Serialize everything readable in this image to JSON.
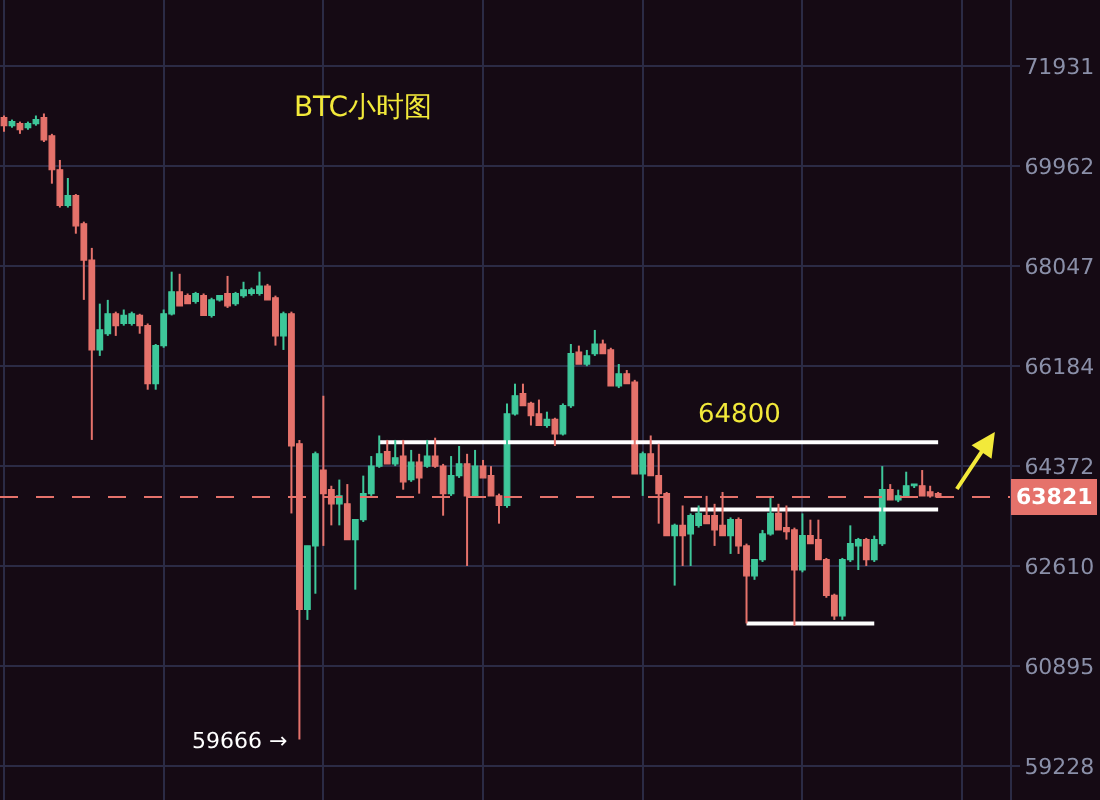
{
  "chart_data": {
    "type": "candlestick",
    "title": "BTC小时图",
    "categories": [
      null,
      null,
      null,
      null,
      null,
      null,
      null,
      null,
      null,
      null,
      null,
      null,
      null,
      null,
      null,
      null,
      null,
      null,
      null,
      null,
      null,
      null,
      null,
      null,
      null,
      null,
      null,
      null,
      null,
      null,
      null,
      null,
      null,
      null,
      null,
      null,
      null,
      null,
      null,
      null,
      null,
      null,
      null,
      null,
      null,
      null,
      null,
      null,
      null,
      null,
      null,
      null,
      null,
      null,
      null,
      null,
      null,
      null,
      null,
      null,
      null,
      null,
      null,
      null,
      null,
      null,
      null,
      null,
      null,
      null,
      null,
      null,
      null,
      null,
      null,
      null,
      null,
      null,
      null,
      null,
      null,
      null,
      null,
      null,
      null,
      null,
      null,
      null,
      null,
      null,
      null,
      null,
      null,
      null,
      null,
      null,
      null,
      null,
      null,
      null,
      null,
      null,
      null,
      null,
      null,
      null,
      null,
      null,
      null,
      null,
      null,
      null,
      null,
      null,
      null,
      null,
      null,
      null
    ],
    "ohlc": [
      [
        70910,
        70950,
        70630,
        70750
      ],
      [
        70750,
        70870,
        70710,
        70830
      ],
      [
        70790,
        70830,
        70590,
        70670
      ],
      [
        70710,
        70830,
        70670,
        70790
      ],
      [
        70790,
        70950,
        70750,
        70870
      ],
      [
        70910,
        70990,
        70430,
        70470
      ],
      [
        70550,
        70590,
        69620,
        69890
      ],
      [
        69890,
        70080,
        69160,
        69200
      ],
      [
        69200,
        69730,
        69160,
        69390
      ],
      [
        69390,
        69420,
        68660,
        68810
      ],
      [
        68850,
        68890,
        67410,
        68160
      ],
      [
        68160,
        68390,
        64840,
        66480
      ],
      [
        66480,
        67340,
        66370,
        66850
      ],
      [
        66780,
        67410,
        66740,
        67150
      ],
      [
        67150,
        67190,
        66740,
        66930
      ],
      [
        66970,
        67230,
        66930,
        67120
      ],
      [
        66970,
        67190,
        66930,
        67150
      ],
      [
        67120,
        67150,
        66780,
        66930
      ],
      [
        66930,
        66970,
        65750,
        65860
      ],
      [
        65860,
        66590,
        65750,
        66560
      ],
      [
        66560,
        67230,
        66520,
        67150
      ],
      [
        67150,
        67940,
        67120,
        67560
      ],
      [
        67560,
        67900,
        67300,
        67300
      ],
      [
        67490,
        67530,
        67340,
        67340
      ],
      [
        67380,
        67560,
        67340,
        67530
      ],
      [
        67490,
        67530,
        67120,
        67120
      ],
      [
        67120,
        67450,
        67080,
        67410
      ],
      [
        67410,
        67490,
        67380,
        67490
      ],
      [
        67530,
        67860,
        67260,
        67300
      ],
      [
        67340,
        67560,
        67300,
        67530
      ],
      [
        67490,
        67750,
        67450,
        67600
      ],
      [
        67530,
        67640,
        67490,
        67600
      ],
      [
        67530,
        67940,
        67490,
        67670
      ],
      [
        67670,
        67710,
        67410,
        67410
      ],
      [
        67450,
        67490,
        66560,
        66740
      ],
      [
        66740,
        67190,
        66480,
        67150
      ],
      [
        67150,
        67190,
        63530,
        64730
      ],
      [
        64770,
        64840,
        59666,
        61860
      ],
      [
        61860,
        62960,
        61680,
        62960
      ],
      [
        62960,
        64630,
        62130,
        64590
      ],
      [
        64300,
        65640,
        62960,
        63880
      ],
      [
        63950,
        64020,
        63320,
        63700
      ],
      [
        63700,
        64130,
        63320,
        63840
      ],
      [
        63700,
        64050,
        63070,
        63070
      ],
      [
        63070,
        63420,
        62200,
        63420
      ],
      [
        63420,
        64200,
        63380,
        63880
      ],
      [
        63880,
        64550,
        63840,
        64370
      ],
      [
        64370,
        64920,
        64340,
        64590
      ],
      [
        64630,
        64840,
        64410,
        64410
      ],
      [
        64410,
        64840,
        64370,
        64520
      ],
      [
        64550,
        64840,
        63950,
        64090
      ],
      [
        64130,
        64660,
        64090,
        64440
      ],
      [
        64440,
        64590,
        63880,
        64160
      ],
      [
        64370,
        64840,
        64340,
        64550
      ],
      [
        64550,
        64880,
        64340,
        64370
      ],
      [
        64370,
        64410,
        63490,
        63880
      ],
      [
        63880,
        64550,
        63840,
        64200
      ],
      [
        64200,
        64730,
        64160,
        64410
      ],
      [
        64410,
        64590,
        62610,
        63840
      ],
      [
        63840,
        64660,
        63810,
        64370
      ],
      [
        64370,
        64480,
        64160,
        64160
      ],
      [
        64200,
        64370,
        63840,
        63840
      ],
      [
        63840,
        63880,
        63350,
        63670
      ],
      [
        63670,
        65500,
        63630,
        65310
      ],
      [
        65310,
        65860,
        65280,
        65640
      ],
      [
        65680,
        65860,
        65460,
        65460
      ],
      [
        65500,
        65530,
        65100,
        65280
      ],
      [
        65310,
        65570,
        65100,
        65100
      ],
      [
        65100,
        65350,
        65060,
        65210
      ],
      [
        65210,
        65240,
        64730,
        64950
      ],
      [
        64950,
        65500,
        64920,
        65460
      ],
      [
        65460,
        66590,
        65420,
        66410
      ],
      [
        66440,
        66560,
        66220,
        66220
      ],
      [
        66220,
        66480,
        66180,
        66370
      ],
      [
        66410,
        66850,
        66370,
        66590
      ],
      [
        66590,
        66670,
        66410,
        66410
      ],
      [
        66480,
        66520,
        65820,
        65820
      ],
      [
        65820,
        66220,
        65780,
        66040
      ],
      [
        66040,
        66110,
        65860,
        65860
      ],
      [
        65890,
        65930,
        64230,
        64230
      ],
      [
        64230,
        64630,
        63840,
        64590
      ],
      [
        64590,
        64920,
        64200,
        64200
      ],
      [
        64200,
        64770,
        63350,
        63880
      ],
      [
        63880,
        63910,
        63140,
        63140
      ],
      [
        63140,
        63350,
        62270,
        63320
      ],
      [
        63320,
        63670,
        62610,
        63140
      ],
      [
        63170,
        63530,
        62610,
        63490
      ],
      [
        63320,
        63670,
        63280,
        63530
      ],
      [
        63490,
        63840,
        63350,
        63350
      ],
      [
        63490,
        63700,
        62960,
        63240
      ],
      [
        63320,
        63910,
        63140,
        63140
      ],
      [
        63140,
        63460,
        62820,
        63420
      ],
      [
        63420,
        63460,
        62820,
        62960
      ],
      [
        62960,
        63000,
        61620,
        62440
      ],
      [
        62440,
        62720,
        62370,
        62720
      ],
      [
        62720,
        63240,
        62680,
        63170
      ],
      [
        63170,
        63810,
        63140,
        63530
      ],
      [
        63530,
        63700,
        63240,
        63240
      ],
      [
        63280,
        63670,
        63070,
        63210
      ],
      [
        63240,
        63280,
        61580,
        62540
      ],
      [
        62540,
        63530,
        62500,
        63140
      ],
      [
        63140,
        63420,
        63000,
        63000
      ],
      [
        63070,
        63420,
        62720,
        62720
      ],
      [
        62720,
        62750,
        62060,
        62100
      ],
      [
        62100,
        62130,
        61680,
        61750
      ],
      [
        61750,
        62750,
        61680,
        62720
      ],
      [
        62720,
        63320,
        62680,
        63000
      ],
      [
        62960,
        63100,
        62540,
        63070
      ],
      [
        63070,
        63100,
        62610,
        62720
      ],
      [
        62720,
        63140,
        62680,
        63070
      ],
      [
        63000,
        64370,
        62960,
        63950
      ],
      [
        63950,
        64050,
        63770,
        63770
      ],
      [
        63770,
        63950,
        63730,
        63840
      ],
      [
        63840,
        64270,
        63810,
        64020
      ],
      [
        64020,
        64050,
        63980,
        64050
      ],
      [
        64020,
        64300,
        63840,
        63840
      ],
      [
        63910,
        64020,
        63810,
        63840
      ],
      [
        63880,
        63910,
        63810,
        63821
      ]
    ],
    "colors": [
      "#e5726b",
      "#3ec79a",
      "#e5726b",
      "#3ec79a",
      "#3ec79a",
      "#e5726b",
      "#e5726b",
      "#e5726b",
      "#3ec79a",
      "#e5726b",
      "#e5726b",
      "#e5726b",
      "#3ec79a",
      "#3ec79a",
      "#e5726b",
      "#3ec79a",
      "#3ec79a",
      "#e5726b",
      "#e5726b",
      "#3ec79a",
      "#3ec79a",
      "#3ec79a",
      "#e5726b",
      "#e5726b",
      "#3ec79a",
      "#e5726b",
      "#3ec79a",
      "#3ec79a",
      "#e5726b",
      "#3ec79a",
      "#3ec79a",
      "#3ec79a",
      "#3ec79a",
      "#e5726b",
      "#e5726b",
      "#3ec79a",
      "#e5726b",
      "#e5726b",
      "#3ec79a",
      "#3ec79a",
      "#e5726b",
      "#e5726b",
      "#3ec79a",
      "#e5726b",
      "#3ec79a",
      "#3ec79a",
      "#3ec79a",
      "#3ec79a",
      "#e5726b",
      "#3ec79a",
      "#e5726b",
      "#3ec79a",
      "#e5726b",
      "#3ec79a",
      "#e5726b",
      "#e5726b",
      "#3ec79a",
      "#3ec79a",
      "#e5726b",
      "#3ec79a",
      "#e5726b",
      "#e5726b",
      "#e5726b",
      "#3ec79a",
      "#3ec79a",
      "#e5726b",
      "#e5726b",
      "#e5726b",
      "#3ec79a",
      "#e5726b",
      "#3ec79a",
      "#3ec79a",
      "#e5726b",
      "#3ec79a",
      "#3ec79a",
      "#e5726b",
      "#e5726b",
      "#3ec79a",
      "#e5726b",
      "#e5726b",
      "#3ec79a",
      "#e5726b",
      "#e5726b",
      "#e5726b",
      "#3ec79a",
      "#e5726b",
      "#3ec79a",
      "#3ec79a",
      "#e5726b",
      "#e5726b",
      "#e5726b",
      "#3ec79a",
      "#e5726b",
      "#e5726b",
      "#3ec79a",
      "#3ec79a",
      "#3ec79a",
      "#e5726b",
      "#e5726b",
      "#e5726b",
      "#3ec79a",
      "#e5726b",
      "#e5726b",
      "#e5726b",
      "#e5726b",
      "#3ec79a",
      "#3ec79a",
      "#3ec79a",
      "#e5726b",
      "#3ec79a",
      "#3ec79a",
      "#e5726b",
      "#3ec79a",
      "#3ec79a",
      "#3ec79a",
      "#e5726b",
      "#e5726b",
      "#e5726b"
    ],
    "series": [
      {
        "type": "line",
        "color": "#ffffff",
        "values": [
          null,
          null,
          null,
          null,
          null,
          null,
          null,
          null,
          null,
          null,
          null,
          null,
          null,
          null,
          null,
          null,
          null,
          null,
          null,
          null,
          null,
          null,
          null,
          null,
          null,
          null,
          null,
          null,
          null,
          null,
          null,
          null,
          null,
          null,
          null,
          null,
          null,
          null,
          null,
          null,
          null,
          null,
          null,
          null,
          null,
          null,
          null,
          64800,
          64800,
          64800,
          64800,
          64800,
          64800,
          64800,
          64800,
          64800,
          64800,
          64800,
          64800,
          64800,
          64800,
          64800,
          64800,
          64800,
          64800,
          64800,
          64800,
          64800,
          64800,
          64800,
          64800,
          64800,
          64800,
          64800,
          64800,
          64800,
          64800,
          64800,
          64800,
          64800,
          64800,
          64800,
          64800,
          64800,
          64800,
          64800,
          64800,
          64800,
          64800,
          64800,
          64800,
          64800,
          64800,
          64800,
          64800,
          64800,
          64800,
          64800,
          64800,
          64800,
          64800,
          64800,
          64800,
          64800,
          64800,
          64800,
          64800,
          64800,
          64800,
          64800,
          64800,
          64800,
          64800,
          64800,
          64800,
          64800,
          64800,
          64800
        ]
      },
      {
        "type": "line",
        "color": "#ffffff",
        "values": [
          null,
          null,
          null,
          null,
          null,
          null,
          null,
          null,
          null,
          null,
          null,
          null,
          null,
          null,
          null,
          null,
          null,
          null,
          null,
          null,
          null,
          null,
          null,
          null,
          null,
          null,
          null,
          null,
          null,
          null,
          null,
          null,
          null,
          null,
          null,
          null,
          null,
          null,
          null,
          null,
          null,
          null,
          null,
          null,
          null,
          null,
          null,
          null,
          null,
          null,
          null,
          null,
          null,
          null,
          null,
          null,
          null,
          null,
          null,
          null,
          null,
          null,
          null,
          null,
          null,
          null,
          null,
          null,
          null,
          null,
          null,
          null,
          null,
          null,
          null,
          null,
          null,
          null,
          null,
          null,
          null,
          null,
          null,
          null,
          null,
          null,
          63600,
          63600,
          63600,
          63600,
          63600,
          63600,
          63600,
          63600,
          63600,
          63600,
          63600,
          63600,
          63600,
          63600,
          63600,
          63600,
          63600,
          63600,
          63600,
          63600,
          63600,
          63600,
          63600,
          63600,
          63600,
          63600,
          63600,
          63600,
          63600,
          63600,
          63600,
          63600
        ]
      },
      {
        "type": "line",
        "color": "#ffffff",
        "values": [
          null,
          null,
          null,
          null,
          null,
          null,
          null,
          null,
          null,
          null,
          null,
          null,
          null,
          null,
          null,
          null,
          null,
          null,
          null,
          null,
          null,
          null,
          null,
          null,
          null,
          null,
          null,
          null,
          null,
          null,
          null,
          null,
          null,
          null,
          null,
          null,
          null,
          null,
          null,
          null,
          null,
          null,
          null,
          null,
          null,
          null,
          null,
          null,
          null,
          null,
          null,
          null,
          null,
          null,
          null,
          null,
          null,
          null,
          null,
          null,
          null,
          null,
          null,
          null,
          null,
          null,
          null,
          null,
          null,
          null,
          null,
          null,
          null,
          null,
          null,
          null,
          null,
          null,
          null,
          null,
          null,
          null,
          null,
          null,
          null,
          null,
          null,
          null,
          null,
          null,
          null,
          null,
          null,
          61620,
          61620,
          61620,
          61620,
          61620,
          61620,
          61620,
          61620,
          61620,
          61620,
          61620,
          61620,
          61620,
          61620,
          61620,
          61620,
          61620,
          null,
          null,
          null,
          null,
          null,
          null,
          null,
          null
        ]
      }
    ],
    "ref_lines": [
      {
        "axis": "y",
        "value": 63821,
        "label": "63821",
        "color": "#e5726b",
        "line_style": "dashed"
      }
    ],
    "annotations": [
      {
        "text": "64800",
        "y": 64800
      },
      "59666 →"
    ],
    "log": "y",
    "ylim": [
      58672,
      73262
    ],
    "yticks": [
      59228,
      60895,
      62610,
      64372,
      66184,
      68047,
      69962,
      71931
    ],
    "grid": true
  }
}
